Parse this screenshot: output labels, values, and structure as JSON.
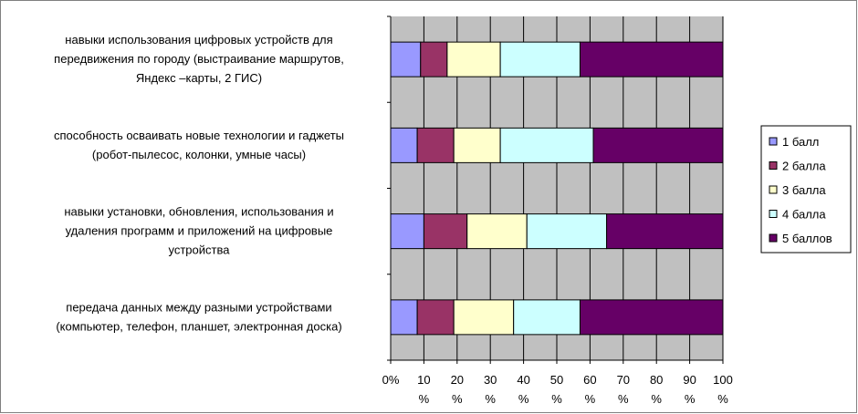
{
  "chart_data": {
    "type": "stacked-bar-horizontal",
    "categories": [
      "навыки использования цифровых устройств для\nпередвижения по городу (выстраивание маршрутов,\nЯндекс –карты, 2 ГИС)",
      "способность осваивать новые технологии и гаджеты\n(робот-пылесос, колонки, умные часы)",
      "навыки установки, обновления, использования и\nудаления программ и приложений на цифровые\nустройства",
      "передача данных между разными устройствами\n(компьютер, телефон, планшет, электронная доска)"
    ],
    "series": [
      {
        "name": "1 балл",
        "color": "#9999ff",
        "values": [
          9,
          8,
          10,
          8
        ]
      },
      {
        "name": "2 балла",
        "color": "#993366",
        "values": [
          8,
          11,
          13,
          11
        ]
      },
      {
        "name": "3 балла",
        "color": "#ffffcc",
        "values": [
          16,
          14,
          18,
          18
        ]
      },
      {
        "name": "4 балла",
        "color": "#ccffff",
        "values": [
          24,
          28,
          24,
          20
        ]
      },
      {
        "name": "5 баллов",
        "color": "#660066",
        "values": [
          43,
          39,
          35,
          43
        ]
      }
    ],
    "xlim": [
      0,
      100
    ],
    "xticks": [
      {
        "value": 0,
        "label": "0%"
      },
      {
        "value": 10,
        "label": "10 %"
      },
      {
        "value": 20,
        "label": "20 %"
      },
      {
        "value": 30,
        "label": "30 %"
      },
      {
        "value": 40,
        "label": "40 %"
      },
      {
        "value": 50,
        "label": "50 %"
      },
      {
        "value": 60,
        "label": "60 %"
      },
      {
        "value": 70,
        "label": "70 %"
      },
      {
        "value": 80,
        "label": "80 %"
      },
      {
        "value": 90,
        "label": "90 %"
      },
      {
        "value": 100,
        "label": "100 %"
      }
    ],
    "grid": true,
    "legend": "right"
  }
}
